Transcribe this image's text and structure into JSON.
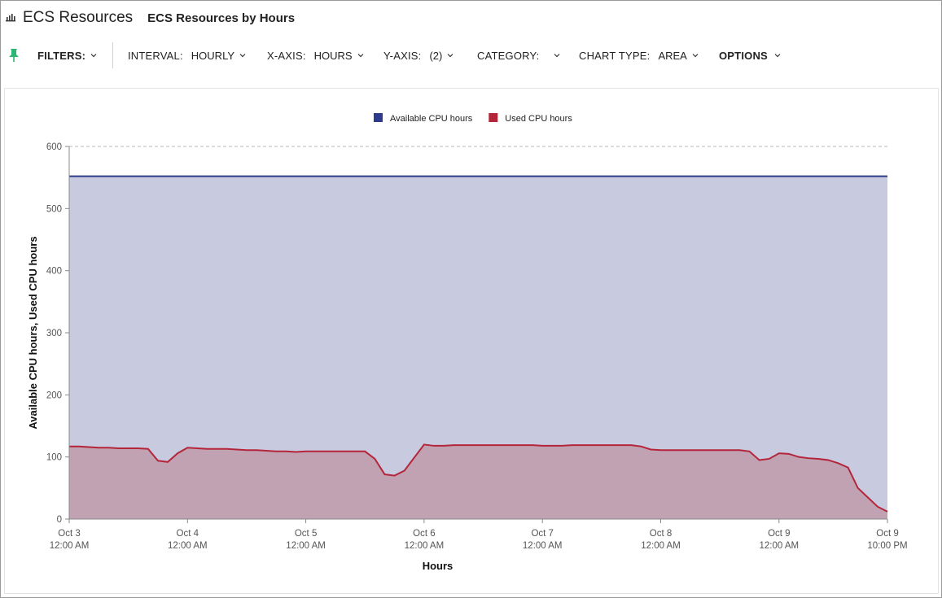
{
  "header": {
    "app_title": "ECS Resources",
    "page_title": "ECS Resources by Hours",
    "app_icon": "bar-chart-icon"
  },
  "toolbar": {
    "pin_icon": "pin-icon",
    "filters_label": "FILTERS:",
    "interval_label": "INTERVAL:",
    "interval_value": "HOURLY",
    "xaxis_label": "X-AXIS:",
    "xaxis_value": "HOURS",
    "yaxis_label": "Y-AXIS:",
    "yaxis_value": "(2)",
    "category_label": "CATEGORY:",
    "category_value": "",
    "charttype_label": "CHART TYPE:",
    "charttype_value": "AREA",
    "options_label": "OPTIONS",
    "pin_color": "#2bb673"
  },
  "chart_data": {
    "type": "area",
    "xlabel": "Hours",
    "ylabel": "Available CPU hours, Used CPU hours",
    "ylim": [
      0,
      600
    ],
    "yticks": [
      0,
      100,
      200,
      300,
      400,
      500,
      600
    ],
    "xlim": [
      "Oct 3 12:00 AM",
      "Oct 9 10:00 PM"
    ],
    "xticks": [
      {
        "date": "Oct 3",
        "time": "12:00 AM"
      },
      {
        "date": "Oct 4",
        "time": "12:00 AM"
      },
      {
        "date": "Oct 5",
        "time": "12:00 AM"
      },
      {
        "date": "Oct 6",
        "time": "12:00 AM"
      },
      {
        "date": "Oct 7",
        "time": "12:00 AM"
      },
      {
        "date": "Oct 8",
        "time": "12:00 AM"
      },
      {
        "date": "Oct 9",
        "time": "12:00 AM"
      },
      {
        "date": "Oct 9",
        "time": "10:00 PM"
      }
    ],
    "grid": true,
    "legend_position": "top-center",
    "series": [
      {
        "name": "Available CPU hours",
        "color": "#2e3a8c",
        "fill": "#c8cadf",
        "points": [
          {
            "x": "Oct 3 12:00 AM",
            "y": 552
          },
          {
            "x": "Oct 9 10:00 PM",
            "y": 552
          }
        ]
      },
      {
        "name": "Used CPU hours",
        "color": "#b5253a",
        "fill": "#c1a2b3",
        "points": [
          {
            "x": "Oct 3 12:00 AM",
            "y": 117
          },
          {
            "x": "Oct 3 2:00 AM",
            "y": 117
          },
          {
            "x": "Oct 3 4:00 AM",
            "y": 116
          },
          {
            "x": "Oct 3 6:00 AM",
            "y": 115
          },
          {
            "x": "Oct 3 8:00 AM",
            "y": 115
          },
          {
            "x": "Oct 3 10:00 AM",
            "y": 114
          },
          {
            "x": "Oct 3 12:00 PM",
            "y": 114
          },
          {
            "x": "Oct 3 2:00 PM",
            "y": 114
          },
          {
            "x": "Oct 3 4:00 PM",
            "y": 113
          },
          {
            "x": "Oct 3 6:00 PM",
            "y": 94
          },
          {
            "x": "Oct 3 8:00 PM",
            "y": 92
          },
          {
            "x": "Oct 3 10:00 PM",
            "y": 106
          },
          {
            "x": "Oct 4 12:00 AM",
            "y": 115
          },
          {
            "x": "Oct 4 2:00 AM",
            "y": 114
          },
          {
            "x": "Oct 4 4:00 AM",
            "y": 113
          },
          {
            "x": "Oct 4 6:00 AM",
            "y": 113
          },
          {
            "x": "Oct 4 8:00 AM",
            "y": 113
          },
          {
            "x": "Oct 4 10:00 AM",
            "y": 112
          },
          {
            "x": "Oct 4 12:00 PM",
            "y": 111
          },
          {
            "x": "Oct 4 2:00 PM",
            "y": 111
          },
          {
            "x": "Oct 4 4:00 PM",
            "y": 110
          },
          {
            "x": "Oct 4 6:00 PM",
            "y": 109
          },
          {
            "x": "Oct 4 8:00 PM",
            "y": 109
          },
          {
            "x": "Oct 4 10:00 PM",
            "y": 108
          },
          {
            "x": "Oct 5 12:00 AM",
            "y": 109
          },
          {
            "x": "Oct 5 2:00 AM",
            "y": 109
          },
          {
            "x": "Oct 5 4:00 AM",
            "y": 109
          },
          {
            "x": "Oct 5 6:00 AM",
            "y": 109
          },
          {
            "x": "Oct 5 8:00 AM",
            "y": 109
          },
          {
            "x": "Oct 5 10:00 AM",
            "y": 109
          },
          {
            "x": "Oct 5 12:00 PM",
            "y": 109
          },
          {
            "x": "Oct 5 2:00 PM",
            "y": 97
          },
          {
            "x": "Oct 5 4:00 PM",
            "y": 72
          },
          {
            "x": "Oct 5 6:00 PM",
            "y": 70
          },
          {
            "x": "Oct 5 8:00 PM",
            "y": 78
          },
          {
            "x": "Oct 6 12:00 AM",
            "y": 120
          },
          {
            "x": "Oct 6 2:00 AM",
            "y": 118
          },
          {
            "x": "Oct 6 4:00 AM",
            "y": 118
          },
          {
            "x": "Oct 6 6:00 AM",
            "y": 119
          },
          {
            "x": "Oct 6 8:00 AM",
            "y": 119
          },
          {
            "x": "Oct 6 10:00 AM",
            "y": 119
          },
          {
            "x": "Oct 6 12:00 PM",
            "y": 119
          },
          {
            "x": "Oct 6 2:00 PM",
            "y": 119
          },
          {
            "x": "Oct 6 4:00 PM",
            "y": 119
          },
          {
            "x": "Oct 6 6:00 PM",
            "y": 119
          },
          {
            "x": "Oct 6 8:00 PM",
            "y": 119
          },
          {
            "x": "Oct 6 10:00 PM",
            "y": 119
          },
          {
            "x": "Oct 7 12:00 AM",
            "y": 118
          },
          {
            "x": "Oct 7 2:00 AM",
            "y": 118
          },
          {
            "x": "Oct 7 4:00 AM",
            "y": 118
          },
          {
            "x": "Oct 7 6:00 AM",
            "y": 119
          },
          {
            "x": "Oct 7 8:00 AM",
            "y": 119
          },
          {
            "x": "Oct 7 10:00 AM",
            "y": 119
          },
          {
            "x": "Oct 7 12:00 PM",
            "y": 119
          },
          {
            "x": "Oct 7 2:00 PM",
            "y": 119
          },
          {
            "x": "Oct 7 4:00 PM",
            "y": 119
          },
          {
            "x": "Oct 7 6:00 PM",
            "y": 119
          },
          {
            "x": "Oct 7 8:00 PM",
            "y": 117
          },
          {
            "x": "Oct 7 10:00 PM",
            "y": 112
          },
          {
            "x": "Oct 8 12:00 AM",
            "y": 111
          },
          {
            "x": "Oct 8 4:00 AM",
            "y": 111
          },
          {
            "x": "Oct 8 8:00 AM",
            "y": 111
          },
          {
            "x": "Oct 8 12:00 PM",
            "y": 111
          },
          {
            "x": "Oct 8 4:00 PM",
            "y": 111
          },
          {
            "x": "Oct 8 6:00 PM",
            "y": 109
          },
          {
            "x": "Oct 8 8:00 PM",
            "y": 95
          },
          {
            "x": "Oct 8 10:00 PM",
            "y": 97
          },
          {
            "x": "Oct 9 12:00 AM",
            "y": 106
          },
          {
            "x": "Oct 9 2:00 AM",
            "y": 105
          },
          {
            "x": "Oct 9 4:00 AM",
            "y": 100
          },
          {
            "x": "Oct 9 6:00 AM",
            "y": 98
          },
          {
            "x": "Oct 9 8:00 AM",
            "y": 97
          },
          {
            "x": "Oct 9 10:00 AM",
            "y": 95
          },
          {
            "x": "Oct 9 12:00 PM",
            "y": 90
          },
          {
            "x": "Oct 9 2:00 PM",
            "y": 83
          },
          {
            "x": "Oct 9 4:00 PM",
            "y": 50
          },
          {
            "x": "Oct 9 6:00 PM",
            "y": 35
          },
          {
            "x": "Oct 9 8:00 PM",
            "y": 20
          },
          {
            "x": "Oct 9 10:00 PM",
            "y": 12
          }
        ]
      }
    ]
  }
}
